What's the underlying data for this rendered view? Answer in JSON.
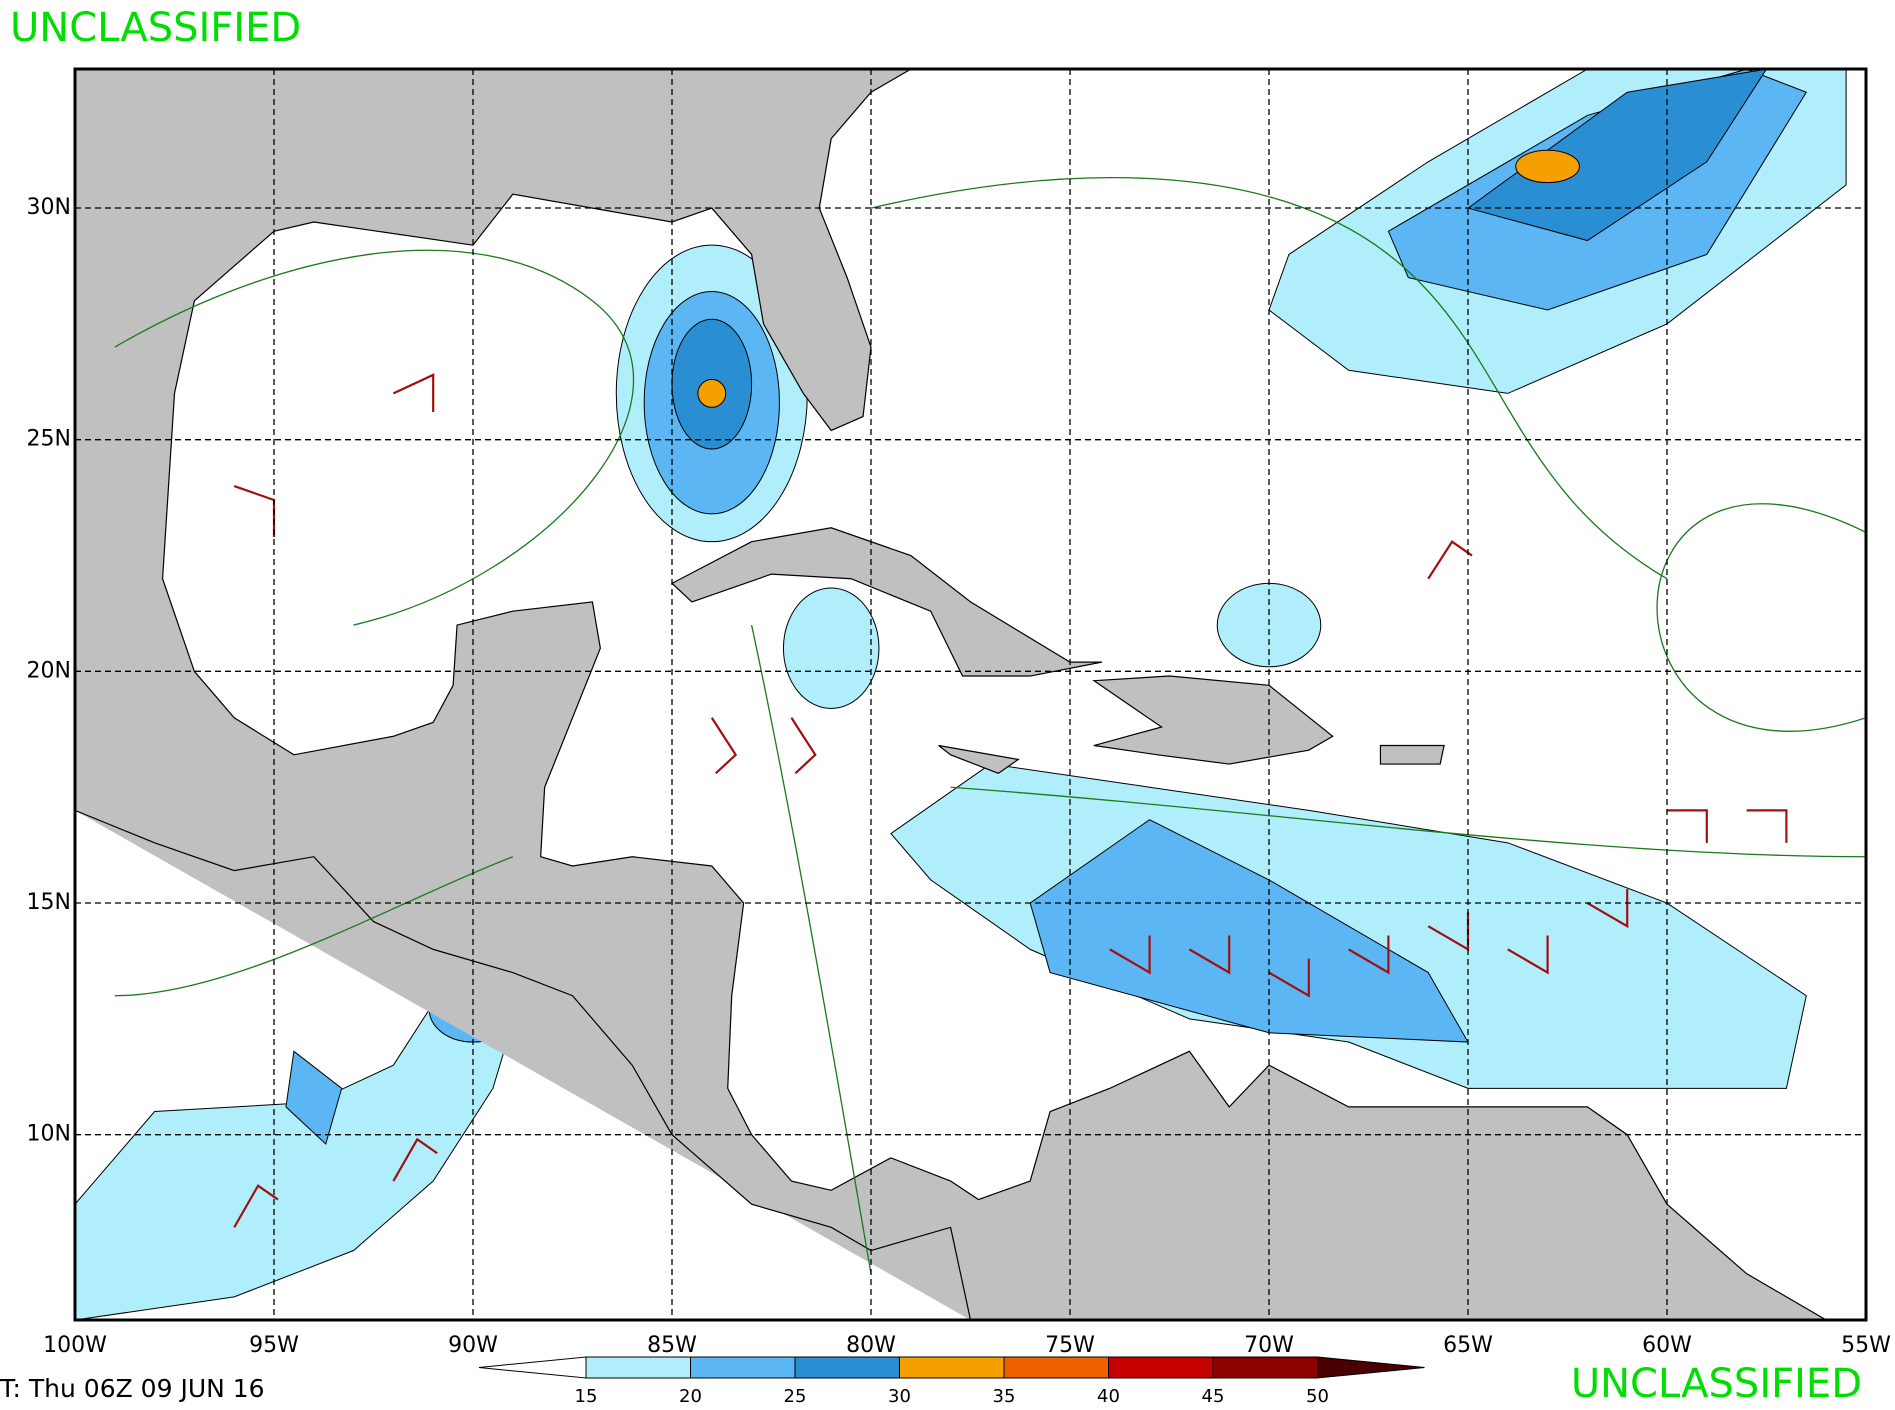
{
  "header": {
    "title": "UNCLASSIFIED"
  },
  "map": {
    "xlim": [
      -100,
      -55
    ],
    "ylim": [
      6,
      33
    ],
    "xticks": [
      {
        "value": -100,
        "label": "100W"
      },
      {
        "value": -95,
        "label": "95W"
      },
      {
        "value": -90,
        "label": "90W"
      },
      {
        "value": -85,
        "label": "85W"
      },
      {
        "value": -80,
        "label": "80W"
      },
      {
        "value": -75,
        "label": "75W"
      },
      {
        "value": -70,
        "label": "70W"
      },
      {
        "value": -65,
        "label": "65W"
      },
      {
        "value": -60,
        "label": "60W"
      },
      {
        "value": -55,
        "label": "55W"
      }
    ],
    "yticks": [
      {
        "value": 10,
        "label": "10N"
      },
      {
        "value": 15,
        "label": "15N"
      },
      {
        "value": 20,
        "label": "20N"
      },
      {
        "value": 25,
        "label": "25N"
      },
      {
        "value": 30,
        "label": "30N"
      }
    ],
    "grid": true
  },
  "colorbar": {
    "levels": [
      15,
      20,
      25,
      30,
      35,
      40,
      45,
      50
    ],
    "colors": [
      "#b0eefc",
      "#5cb6f4",
      "#2a8ed2",
      "#f5a000",
      "#ef6000",
      "#c40000",
      "#8c0000"
    ],
    "over_color": "#4a0000"
  },
  "footer": {
    "valid": "T: Thu 06Z 09 JUN 16",
    "classification": "UNCLASSIFIED"
  }
}
